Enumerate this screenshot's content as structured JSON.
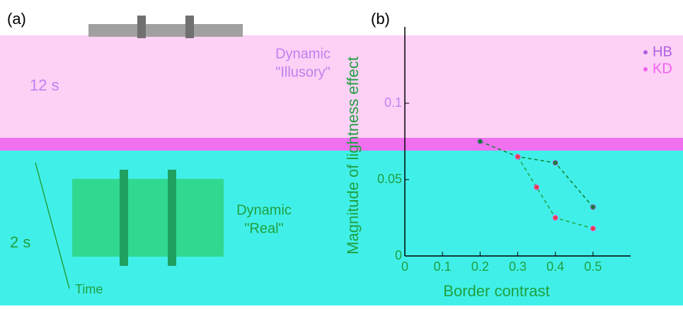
{
  "panel_a": {
    "label": "(a)",
    "top_time": "12 s",
    "top_caption": [
      "Dynamic",
      "\"Illusory\""
    ],
    "bottom_time": "2 s",
    "bottom_caption": [
      "Dynamic",
      "\"Real\""
    ],
    "axis": "Time"
  },
  "chart_data": {
    "type": "line",
    "panel_label": "(b)",
    "xlabel": "Border contrast",
    "ylabel": "Magnitude of lightness effect",
    "xlim": [
      0,
      0.6
    ],
    "xticks": [
      0,
      0.1,
      0.2,
      0.3,
      0.4,
      0.5
    ],
    "ylim": [
      0,
      0.15
    ],
    "yticks": [
      0,
      0.05,
      0.1
    ],
    "legend": "top-right",
    "series": [
      {
        "name": "HB",
        "color": "#b060e0",
        "x": [
          0.2,
          0.3,
          0.4,
          0.5
        ],
        "values": [
          0.075,
          0.065,
          0.061,
          0.032
        ]
      },
      {
        "name": "KD",
        "color": "#f060f0",
        "x": [
          0.3,
          0.35,
          0.4,
          0.5
        ],
        "values": [
          0.065,
          0.045,
          0.025,
          0.018
        ]
      }
    ]
  }
}
